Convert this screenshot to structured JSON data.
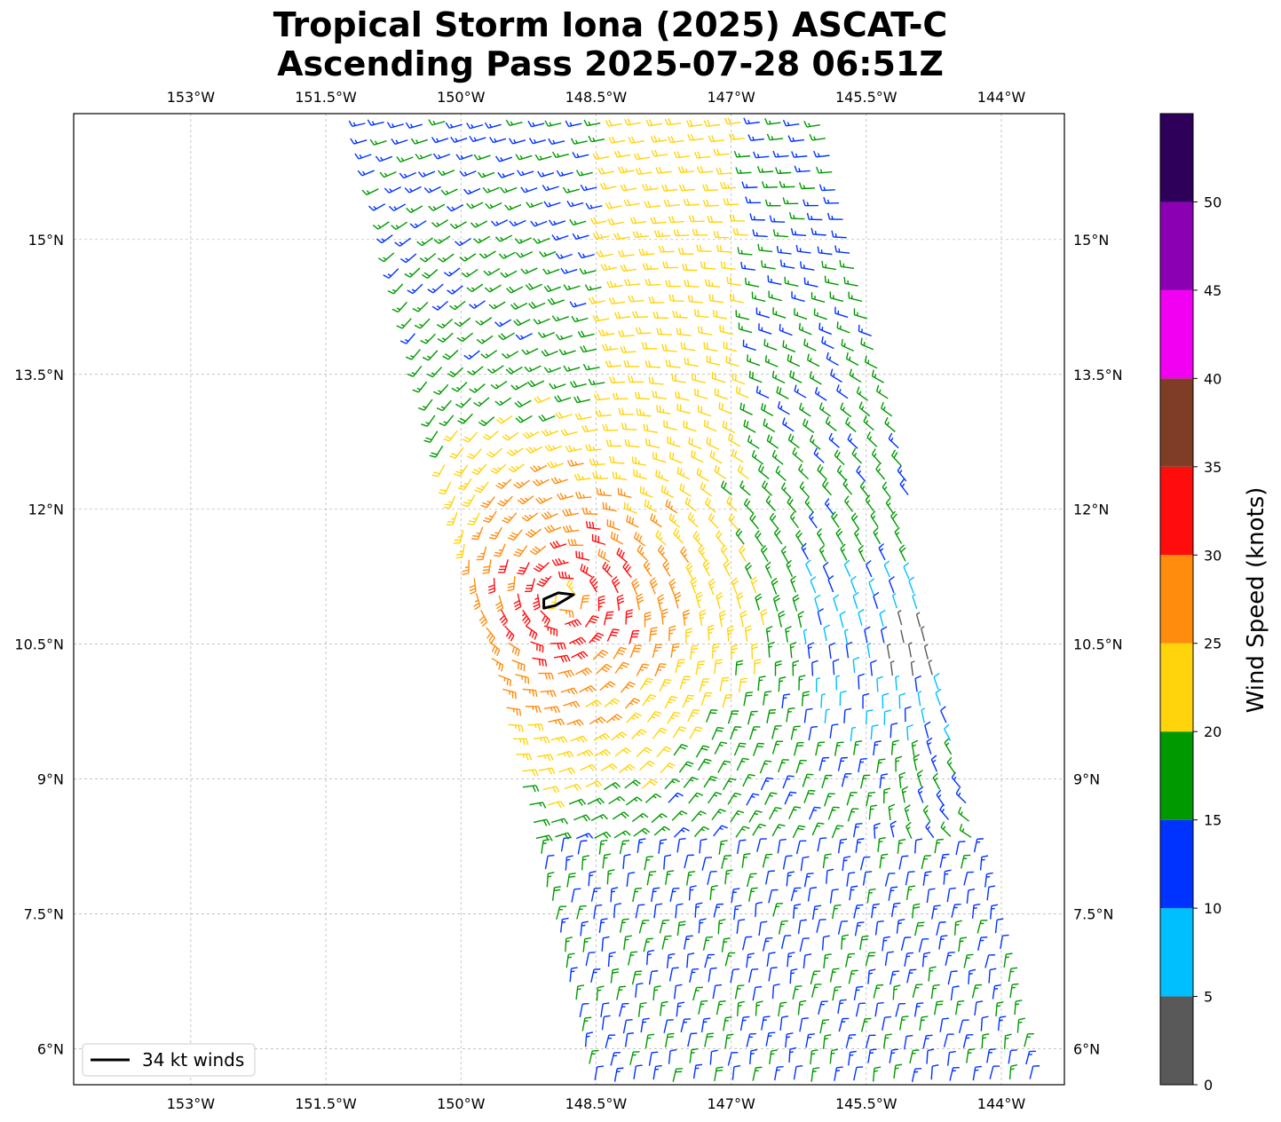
{
  "title": {
    "line1": "Tropical Storm Iona (2025) ASCAT-C",
    "line2": "Ascending Pass 2025-07-28 06:51Z"
  },
  "map": {
    "lon_range": [
      -154.3,
      -143.3
    ],
    "lat_range": [
      5.6,
      16.4
    ],
    "lon_ticks": [
      {
        "value": -153,
        "label": "153°W"
      },
      {
        "value": -151.5,
        "label": "151.5°W"
      },
      {
        "value": -150,
        "label": "150°W"
      },
      {
        "value": -148.5,
        "label": "148.5°W"
      },
      {
        "value": -147,
        "label": "147°W"
      },
      {
        "value": -145.5,
        "label": "145.5°W"
      },
      {
        "value": -144,
        "label": "144°W"
      }
    ],
    "lat_ticks": [
      {
        "value": 6,
        "label": "6°N"
      },
      {
        "value": 7.5,
        "label": "7.5°N"
      },
      {
        "value": 9,
        "label": "9°N"
      },
      {
        "value": 10.5,
        "label": "10.5°N"
      },
      {
        "value": 12,
        "label": "12°N"
      },
      {
        "value": 13.5,
        "label": "13.5°N"
      },
      {
        "value": 15,
        "label": "15°N"
      }
    ],
    "gridlines": true,
    "legend": {
      "label": "34 kt winds",
      "placement": "lower-left"
    }
  },
  "chart_data": {
    "type": "wind-barb map",
    "storm_center": {
      "lon": -148.85,
      "lat": 11.0
    },
    "swath": {
      "west_lon_north": -151.1,
      "west_lon_south": -148.5,
      "east_lon_north": -146.0,
      "east_lon_south": -143.5,
      "north_lat": 16.4,
      "south_lat": 5.6
    },
    "wind_34kt_area": [
      {
        "lon": -149.08,
        "lat": 11.0
      },
      {
        "lon": -148.92,
        "lat": 11.07
      },
      {
        "lon": -148.75,
        "lat": 11.05
      },
      {
        "lon": -148.95,
        "lat": 10.93
      },
      {
        "lon": -149.08,
        "lat": 10.9
      }
    ]
  },
  "colorbar": {
    "label": "Wind Speed (knots)",
    "bounds": [
      0,
      5,
      10,
      15,
      20,
      25,
      30,
      35,
      40,
      45,
      50,
      55
    ],
    "colors": [
      "#595959",
      "#00bfff",
      "#0033ff",
      "#009900",
      "#ffd40d",
      "#ff8c0d",
      "#ff0d0d",
      "#803d26",
      "#f200f2",
      "#8c00b3",
      "#2e0059"
    ],
    "tick_values": [
      0,
      5,
      10,
      15,
      20,
      25,
      30,
      35,
      40,
      45,
      50
    ]
  }
}
